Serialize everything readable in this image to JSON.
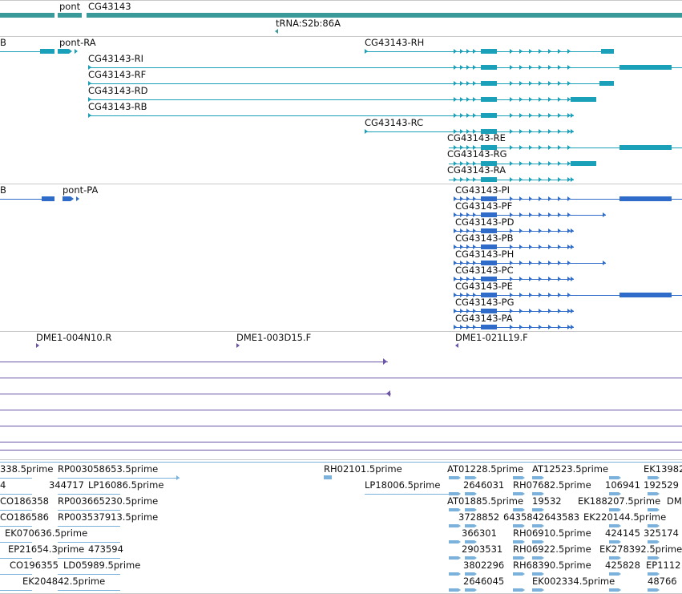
{
  "colors": {
    "gene": "#3a9a9a",
    "transcript": "#1aa0b8",
    "protein": "#2f6bc9",
    "clone": "#6a55a8",
    "est": "#7ab2dc",
    "separator": "#c8c8c8"
  },
  "genes_track": {
    "labels": [
      "pont",
      "CG43143",
      "tRNA:S2b:86A"
    ]
  },
  "transcripts_track": {
    "labels": [
      "B",
      "pont-RA",
      "CG43143-RH",
      "CG43143-RI",
      "CG43143-RF",
      "CG43143-RD",
      "CG43143-RB",
      "CG43143-RC",
      "CG43143-RE",
      "CG43143-RG",
      "CG43143-RA"
    ]
  },
  "proteins_track": {
    "labels": [
      "B",
      "pont-PA",
      "CG43143-PI",
      "CG43143-PF",
      "CG43143-PD",
      "CG43143-PB",
      "CG43143-PH",
      "CG43143-PC",
      "CG43143-PE",
      "CG43143-PG",
      "CG43143-PA"
    ]
  },
  "clones_track": {
    "labels": [
      "DME1-004N10.R",
      "DME1-003D15.F",
      "DME1-021L19.F"
    ]
  },
  "ests_track": {
    "labels": [
      "338.5prime",
      "RP003058653.5prime",
      "RH02101.5prime",
      "AT01228.5prime",
      "AT12523.5prime",
      "EK13982",
      "4",
      "344717",
      "LP16086.5prime",
      "LP18006.5prime",
      "2646031",
      "RH07682.5prime",
      "106941",
      "192529",
      "CO186358",
      "RP003665230.5prime",
      "AT01885.5prime",
      "19532",
      "EK188207.5prime",
      "DM",
      "CO186586",
      "RP003537913.5prime",
      "3728852",
      "6435842643583",
      "EK220144.5prime",
      "EK070636.5prime",
      "366301",
      "RH06910.5prime",
      "424145",
      "325174",
      "EP21654.3prime",
      "473594",
      "2903531",
      "RH06922.5prime",
      "EK278392.5prime",
      "CO196355",
      "LD05989.5prime",
      "3802296",
      "RH68390.5prime",
      "425828",
      "EP1112",
      "EK204842.5prime",
      "2646045",
      "EK002334.5prime",
      "48766"
    ]
  }
}
